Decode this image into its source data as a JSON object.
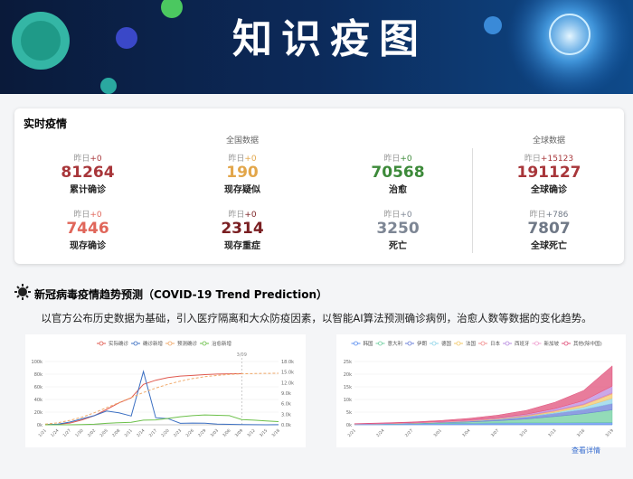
{
  "banner": {
    "title": "知识疫图"
  },
  "realtime": {
    "title": "实时疫情",
    "domestic_title": "全国数据",
    "global_title": "全球数据",
    "domestic": [
      {
        "prefix": "昨日",
        "delta": "+0",
        "value": 81264,
        "label": "累计确诊",
        "color": "#a8363a"
      },
      {
        "prefix": "昨日",
        "delta": "+0",
        "value": 190,
        "label": "现存疑似",
        "color": "#e2a64a"
      },
      {
        "prefix": "昨日",
        "delta": "+0",
        "value": 70568,
        "label": "治愈",
        "color": "#3d8a3a"
      },
      {
        "prefix": "昨日",
        "delta": "+0",
        "value": 7446,
        "label": "现存确诊",
        "color": "#e0665a"
      },
      {
        "prefix": "昨日",
        "delta": "+0",
        "value": 2314,
        "label": "现存重症",
        "color": "#7a1f22"
      },
      {
        "prefix": "昨日",
        "delta": "+0",
        "value": 3250,
        "label": "死亡",
        "color": "#7d8694"
      }
    ],
    "global": [
      {
        "prefix": "昨日",
        "delta": "+15123",
        "value": 191127,
        "label": "全球确诊",
        "color": "#a8363a"
      },
      {
        "prefix": "昨日",
        "delta": "+786",
        "value": 7807,
        "label": "全球死亡",
        "color": "#6f7886"
      }
    ]
  },
  "section": {
    "title": "新冠病毒疫情趋势预测（COVID-19 Trend Prediction）",
    "description": "以官方公布历史数据为基础，引入医疗隔离和大众防疫因素，以智能AI算法预测确诊病例，治愈人数等数据的变化趋势。"
  },
  "trend_chart": {
    "type": "line",
    "categories": [
      "1/21",
      "1/24",
      "1/27",
      "1/30",
      "2/02",
      "2/05",
      "2/08",
      "2/11",
      "2/14",
      "2/17",
      "2/20",
      "2/23",
      "2/26",
      "2/29",
      "3/03",
      "3/06",
      "3/09",
      "3/12",
      "3/15",
      "3/18"
    ],
    "marker": "3/09",
    "ylim": [
      0,
      100000
    ],
    "yticks": [
      {
        "value": 0,
        "label": "0k"
      },
      {
        "value": 20000,
        "label": "20k"
      },
      {
        "value": 40000,
        "label": "40k"
      },
      {
        "value": 60000,
        "label": "60k"
      },
      {
        "value": 80000,
        "label": "80k"
      },
      {
        "value": 100000,
        "label": "100k"
      }
    ],
    "y2lim": [
      0,
      18000
    ],
    "y2ticks": [
      {
        "value": 0,
        "label": "0.0k"
      },
      {
        "value": 3000,
        "label": "3.0k"
      },
      {
        "value": 6000,
        "label": "6.0k"
      },
      {
        "value": 9000,
        "label": "9.0k"
      },
      {
        "value": 12000,
        "label": "12.0k"
      },
      {
        "value": 15000,
        "label": "15.0k"
      },
      {
        "value": 18000,
        "label": "18.0k"
      }
    ],
    "series": [
      {
        "name": "实际确诊",
        "color": "#e05a50",
        "values": [
          400,
          800,
          2700,
          7700,
          14400,
          24300,
          34500,
          42600,
          63800,
          70500,
          74600,
          77000,
          78000,
          79300,
          80200,
          80600,
          80800,
          null,
          null,
          null
        ]
      },
      {
        "name": "确诊新增",
        "color": "#3b6fc2",
        "axis": "y2",
        "values": [
          77,
          150,
          770,
          1700,
          2600,
          3900,
          3400,
          2500,
          15150,
          2000,
          1750,
          400,
          500,
          430,
          200,
          120,
          40,
          20,
          10,
          30
        ]
      },
      {
        "name": "预测确诊",
        "color": "#f0a868",
        "dashed": true,
        "values": [
          1000,
          3000,
          7000,
          12000,
          19000,
          27000,
          35000,
          43000,
          51000,
          58000,
          64000,
          69000,
          73000,
          76000,
          78000,
          79500,
          80500,
          81000,
          81300,
          81500
        ]
      },
      {
        "name": "治愈新增",
        "color": "#6cc04a",
        "axis": "y2",
        "values": [
          0,
          0,
          10,
          60,
          150,
          400,
          600,
          700,
          1300,
          1400,
          1800,
          2300,
          2600,
          2800,
          2700,
          2600,
          1500,
          1300,
          1100,
          900
        ]
      }
    ]
  },
  "country_chart": {
    "type": "stacked-area",
    "categories": [
      "2/21",
      "2/24",
      "2/27",
      "3/01",
      "3/04",
      "3/07",
      "3/10",
      "3/13",
      "3/16",
      "3/19"
    ],
    "ylim": [
      0,
      25000
    ],
    "yticks": [
      {
        "value": 0,
        "label": "0k"
      },
      {
        "value": 5000,
        "label": "5k"
      },
      {
        "value": 10000,
        "label": "10k"
      },
      {
        "value": 15000,
        "label": "15k"
      },
      {
        "value": 20000,
        "label": "20k"
      },
      {
        "value": 25000,
        "label": "25k"
      }
    ],
    "series": [
      {
        "name": "韩国",
        "color": "#5b8ff0",
        "values": [
          200,
          300,
          400,
          500,
          600,
          700,
          800,
          800,
          850,
          900
        ]
      },
      {
        "name": "意大利",
        "color": "#6fcfa0",
        "values": [
          20,
          80,
          150,
          300,
          500,
          900,
          1500,
          2500,
          3500,
          5000
        ]
      },
      {
        "name": "伊朗",
        "color": "#6a7fd8",
        "values": [
          5,
          30,
          80,
          150,
          300,
          500,
          800,
          1200,
          1700,
          2500
        ]
      },
      {
        "name": "德国",
        "color": "#8fd4e8",
        "values": [
          5,
          10,
          20,
          40,
          60,
          100,
          200,
          400,
          900,
          2000
        ]
      },
      {
        "name": "法国",
        "color": "#f3c86a",
        "values": [
          5,
          10,
          20,
          40,
          80,
          150,
          250,
          500,
          900,
          1800
        ]
      },
      {
        "name": "日本",
        "color": "#f28f8f",
        "values": [
          50,
          80,
          100,
          120,
          150,
          180,
          200,
          250,
          300,
          400
        ]
      },
      {
        "name": "西班牙",
        "color": "#b88be0",
        "values": [
          2,
          5,
          10,
          30,
          60,
          150,
          300,
          600,
          1200,
          2500
        ]
      },
      {
        "name": "新加坡",
        "color": "#f0a0d0",
        "values": [
          60,
          70,
          80,
          90,
          100,
          110,
          130,
          150,
          180,
          200
        ]
      },
      {
        "name": "其他(除中国)",
        "color": "#e0507a",
        "values": [
          100,
          150,
          250,
          400,
          700,
          1000,
          1500,
          2500,
          4000,
          8000
        ]
      }
    ]
  },
  "link": "查看详情"
}
